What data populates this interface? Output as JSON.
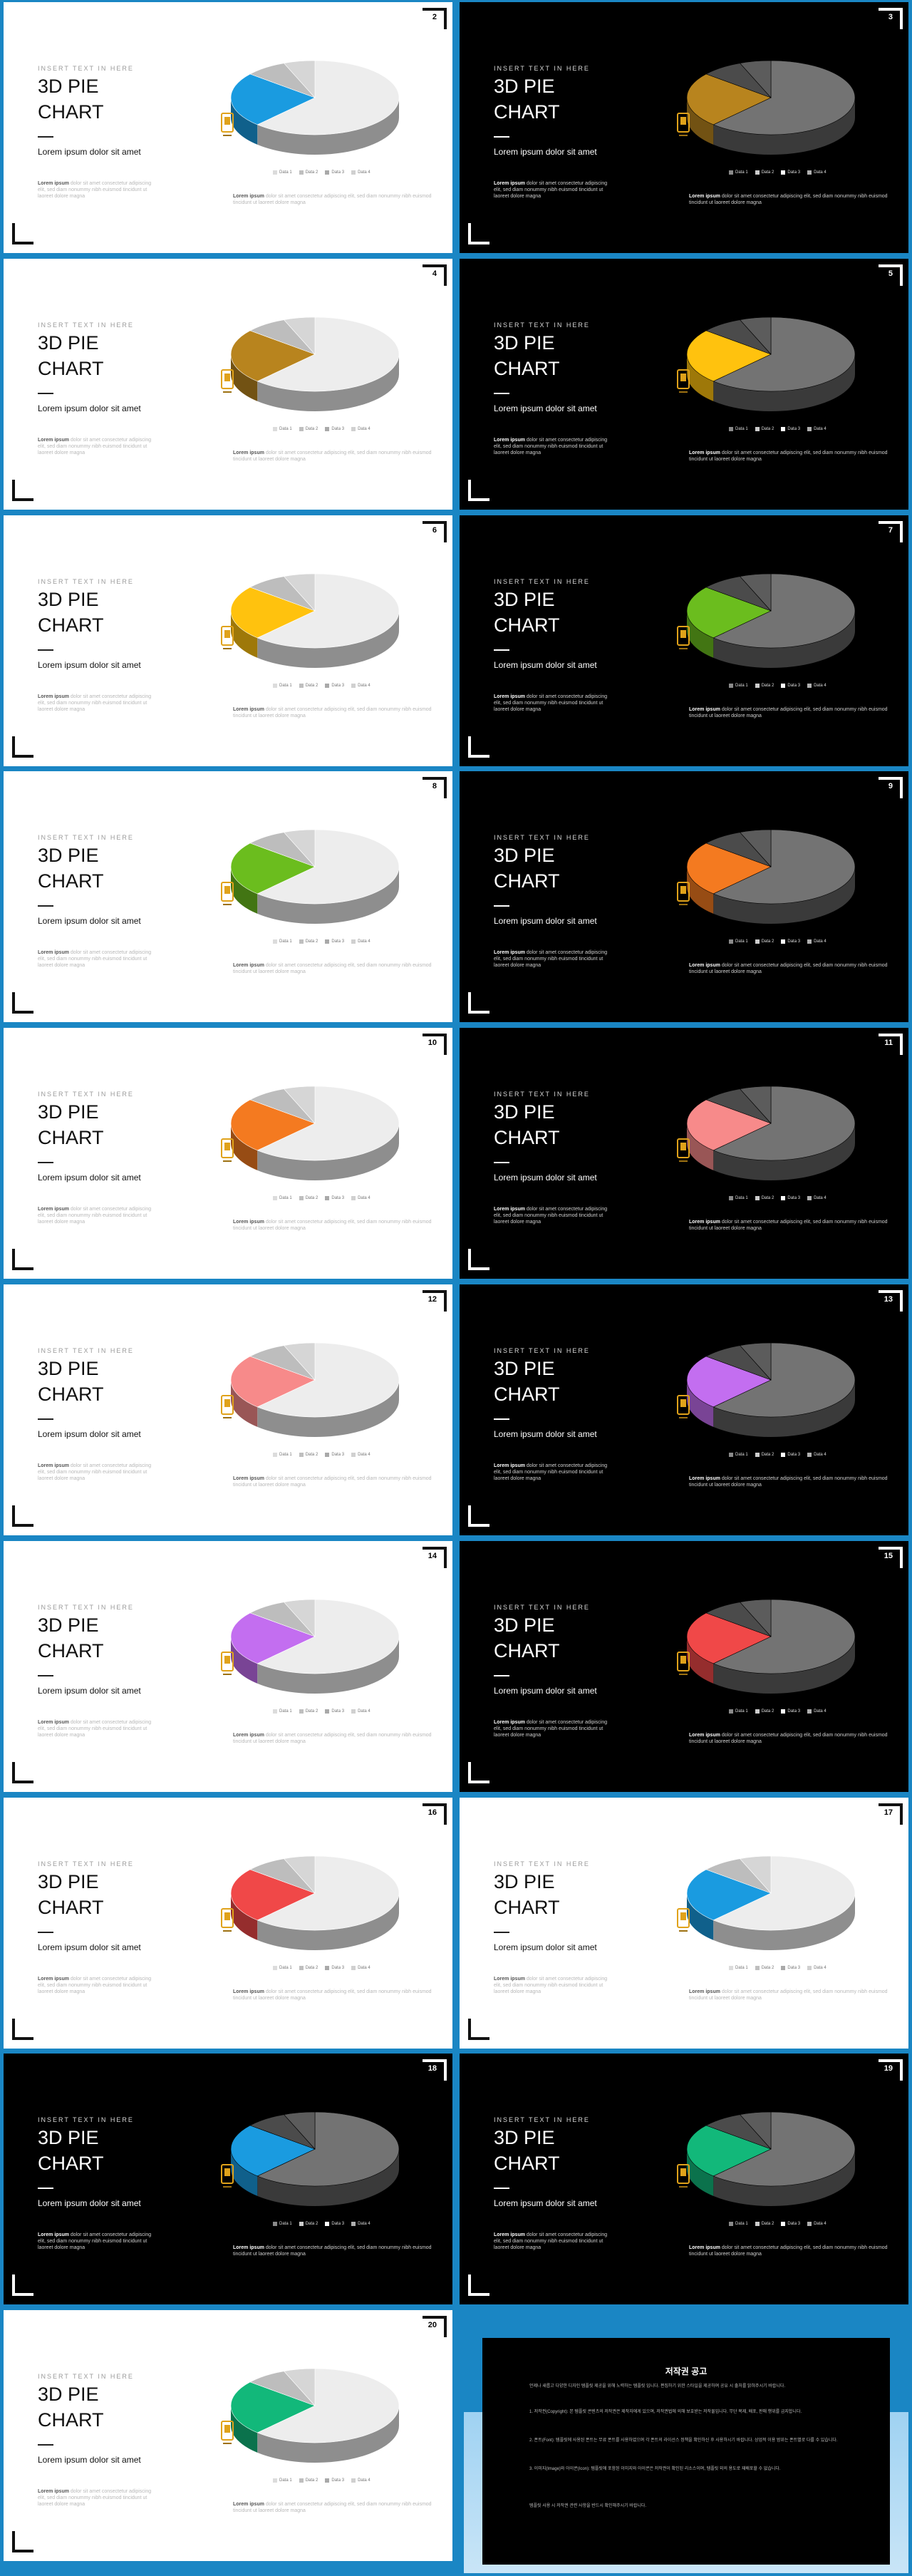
{
  "deck": {
    "kicker": "INSERT TEXT IN HERE",
    "title_line1": "3D PIE",
    "title_line2": "CHART",
    "subtitle": "Lorem ipsum dolor sit amet",
    "body_lead": "Lorem ipsum",
    "body_left": "dolor sit amet consectetur adipiscing elit, sed diam nonummy nibh euismod tincidunt ut laoreet dolore magna",
    "body_right": "dolor sit amet consectetur adipiscing elit, sed diam nonummy nibh euismod tincidunt ut laoreet dolore magna",
    "legend": [
      "Data 1",
      "Data 2",
      "Data 3",
      "Data 4"
    ],
    "colors": {
      "frame": "#1a86c4",
      "slice_light": "#ececec",
      "slice_dark_bg": "#6e6e6e",
      "gold": "#e0a21a"
    }
  },
  "slides": [
    {
      "page": "2",
      "theme": "light",
      "accent": "#1a9be0"
    },
    {
      "page": "3",
      "theme": "dark",
      "accent": "#b8841e"
    },
    {
      "page": "4",
      "theme": "light",
      "accent": "#b8841e"
    },
    {
      "page": "5",
      "theme": "dark",
      "accent": "#ffc20e"
    },
    {
      "page": "6",
      "theme": "light",
      "accent": "#ffc20e"
    },
    {
      "page": "7",
      "theme": "dark",
      "accent": "#6bbd1e"
    },
    {
      "page": "8",
      "theme": "light",
      "accent": "#6bbd1e"
    },
    {
      "page": "9",
      "theme": "dark",
      "accent": "#f47a20"
    },
    {
      "page": "10",
      "theme": "light",
      "accent": "#f47a20"
    },
    {
      "page": "11",
      "theme": "dark",
      "accent": "#f78a8a"
    },
    {
      "page": "12",
      "theme": "light",
      "accent": "#f78a8a"
    },
    {
      "page": "13",
      "theme": "dark",
      "accent": "#c36ef0"
    },
    {
      "page": "14",
      "theme": "light",
      "accent": "#c36ef0"
    },
    {
      "page": "15",
      "theme": "dark",
      "accent": "#f04848"
    },
    {
      "page": "16",
      "theme": "light",
      "accent": "#f04848"
    },
    {
      "page": "17",
      "theme": "light",
      "accent": "#1a9be0"
    },
    {
      "page": "18",
      "theme": "dark",
      "accent": "#1a9be0"
    },
    {
      "page": "19",
      "theme": "dark",
      "accent": "#12b87a"
    },
    {
      "page": "20",
      "theme": "light",
      "accent": "#12b87a"
    }
  ],
  "chart_data": {
    "type": "pie",
    "categories": [
      "Data 1",
      "Data 2",
      "Data 3",
      "Data 4"
    ],
    "values": [
      62,
      24,
      8,
      6
    ]
  },
  "notice": {
    "title": "저작권 공고",
    "intro": "언제나 새롭고 다양한 디자인 템플릿 제공을 위해 노력하는 템플릿 입니다. 편집하기 위한 스타일을 제공하며 공유 시 출처를 밝혀주시기 바랍니다.",
    "section1": "1. 저작권(Copyright): 본 템플릿 콘텐츠의 저작권은 제작자에게 있으며, 저작권법에 의해 보호받는 저작물입니다. 무단 복제, 배포, 판매 행위를 금지합니다.",
    "section2": "2. 폰트(Font): 템플릿에 사용된 폰트는 무료 폰트를 사용하였으며 각 폰트의 라이선스 정책을 확인하신 후 사용하시기 바랍니다. 상업적 이용 범위는 폰트별로 다를 수 있습니다.",
    "section3": "3. 이미지(Image)와 아이콘(Icon): 템플릿에 포함된 이미지와 아이콘은 저작권이 확인된 리소스이며, 템플릿 외의 용도로 재배포할 수 없습니다.",
    "outro": "템플릿 사용 시 저작권 관련 사항을 반드시 확인해주시기 바랍니다."
  }
}
